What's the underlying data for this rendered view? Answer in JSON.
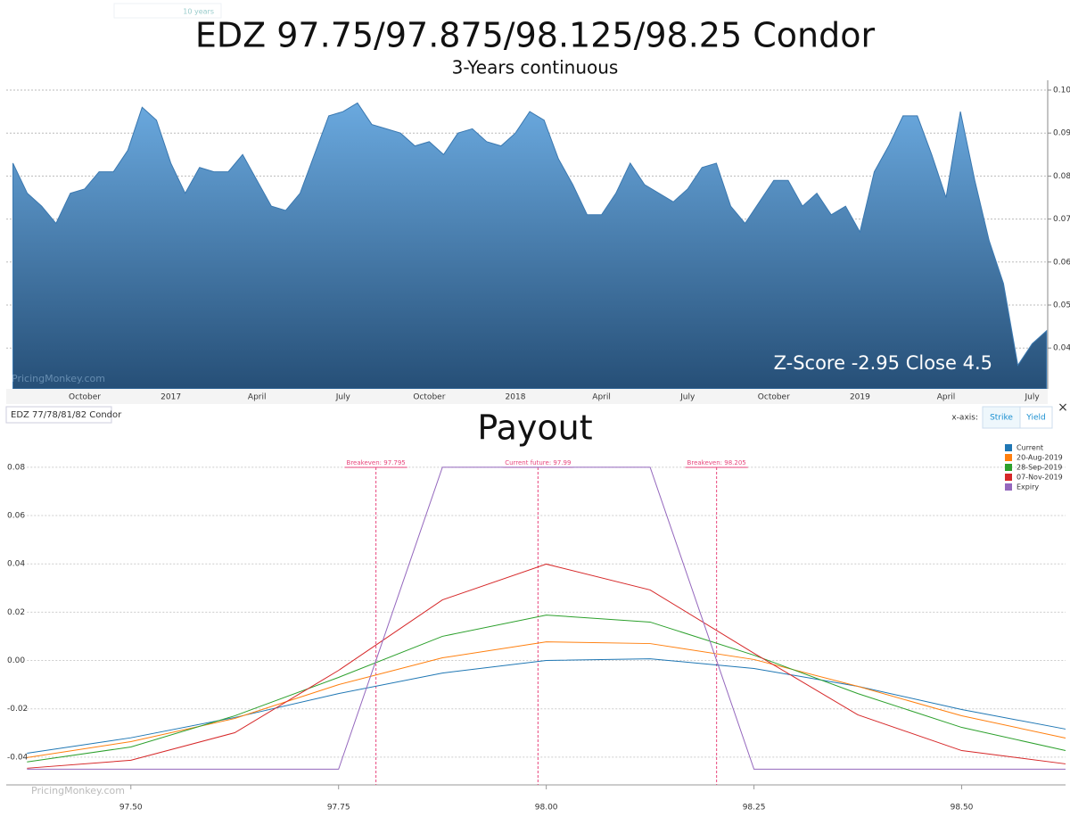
{
  "chart_data": [
    {
      "type": "area",
      "title": "EDZ 97.75/97.875/98.125/98.25 Condor",
      "subtitle": "3-Years continuous",
      "categories": [
        null,
        null,
        null,
        null,
        null,
        "October",
        null,
        null,
        null,
        null,
        null,
        "2017",
        null,
        null,
        null,
        null,
        null,
        "April",
        null,
        null,
        null,
        null,
        null,
        "July",
        null,
        null,
        null,
        null,
        null,
        "October",
        null,
        null,
        null,
        null,
        null,
        "2018",
        null,
        null,
        null,
        null,
        null,
        "April",
        null,
        null,
        null,
        null,
        null,
        "July",
        null,
        null,
        null,
        null,
        null,
        "October",
        null,
        null,
        null,
        null,
        null,
        "2019",
        null,
        null,
        null,
        null,
        null,
        "April",
        null,
        null,
        null,
        null,
        null,
        "July",
        null
      ],
      "values": [
        0.083,
        0.076,
        0.073,
        0.069,
        0.076,
        0.077,
        0.081,
        0.081,
        0.086,
        0.096,
        0.093,
        0.083,
        0.076,
        0.082,
        0.081,
        0.081,
        0.085,
        0.079,
        0.073,
        0.072,
        0.076,
        0.085,
        0.094,
        0.095,
        0.097,
        0.092,
        0.091,
        0.09,
        0.087,
        0.088,
        0.085,
        0.09,
        0.091,
        0.088,
        0.087,
        0.09,
        0.095,
        0.093,
        0.084,
        0.078,
        0.071,
        0.071,
        0.076,
        0.083,
        0.078,
        0.076,
        0.074,
        0.077,
        0.082,
        0.083,
        0.073,
        0.069,
        0.074,
        0.079,
        0.079,
        0.073,
        0.076,
        0.071,
        0.073,
        0.067,
        0.081,
        0.087,
        0.094,
        0.094,
        0.085,
        0.075,
        0.095,
        0.079,
        0.065,
        0.055,
        0.036,
        0.041,
        0.044
      ],
      "color": "#3a78b0",
      "ylim": [
        0.0305,
        0.1045
      ],
      "yticks": [
        0.04,
        0.05,
        0.06,
        0.07,
        0.08,
        0.09,
        {
          "value": 0.1,
          "label": "0.10"
        }
      ],
      "grid": true,
      "y_axis_side": "right",
      "annotation": "Z-Score -2.95 Close 4.5",
      "watermark": "PricingMonkey.com"
    },
    {
      "type": "line",
      "title": "Payout",
      "x": [
        97.375,
        97.5,
        97.625,
        97.75,
        97.875,
        98.0,
        98.125,
        98.25,
        98.375,
        98.5,
        98.625
      ],
      "series": [
        {
          "name": "Current",
          "color": "#1f77b4",
          "values": [
            -0.0384,
            -0.032,
            -0.0236,
            -0.0137,
            -0.0052,
            0.0,
            0.0007,
            -0.0033,
            -0.0107,
            -0.0203,
            -0.0284
          ]
        },
        {
          "name": "20-Aug-2019",
          "color": "#ff7f0e",
          "values": [
            -0.0402,
            -0.0336,
            -0.024,
            -0.01,
            0.0011,
            0.0077,
            0.007,
            0.0004,
            -0.0107,
            -0.0229,
            -0.0321
          ]
        },
        {
          "name": "28-Sep-2019",
          "color": "#2ca02c",
          "values": [
            -0.042,
            -0.0358,
            -0.0229,
            -0.007,
            0.01,
            0.0188,
            0.0159,
            0.0022,
            -0.0137,
            -0.0277,
            -0.0373
          ]
        },
        {
          "name": "07-Nov-2019",
          "color": "#d62728",
          "values": [
            -0.0446,
            -0.0413,
            -0.0299,
            -0.0041,
            0.0251,
            0.0399,
            0.0292,
            0.003,
            -0.0225,
            -0.0373,
            -0.0428
          ]
        },
        {
          "name": "Expiry",
          "color": "#9467bd",
          "values": [
            -0.045,
            -0.045,
            -0.045,
            -0.045,
            0.08,
            0.08,
            0.08,
            -0.045,
            -0.045,
            -0.045,
            -0.045
          ]
        }
      ],
      "xlim": [
        97.35,
        98.625
      ],
      "ylim": [
        -0.0515,
        0.0925
      ],
      "xticks": [
        {
          "value": 97.5,
          "label": "97.50"
        },
        97.75,
        {
          "value": 98.0,
          "label": "98.00"
        },
        98.25,
        {
          "value": 98.5,
          "label": "98.50"
        }
      ],
      "yticks": [
        -0.04,
        -0.02,
        {
          "value": 0,
          "label": "0.00"
        },
        0.02,
        0.04,
        0.06,
        0.08
      ],
      "grid": true,
      "legend": "top-right",
      "markers": [
        {
          "value": 97.795,
          "label": "Breakeven: 97.795"
        },
        {
          "value": 97.99,
          "label": "Current future: 97.99"
        },
        {
          "value": 98.205,
          "label": "Breakeven: 98.205"
        }
      ],
      "marker_color": "#e8457c",
      "watermark": "PricingMonkey.com"
    }
  ],
  "ui": {
    "range_tab": "10 years",
    "strategy_label": "EDZ 77/78/81/82 Condor",
    "xaxis_label": "x-axis:",
    "xaxis_options": [
      "Strike",
      "Yield"
    ],
    "close": "×"
  }
}
